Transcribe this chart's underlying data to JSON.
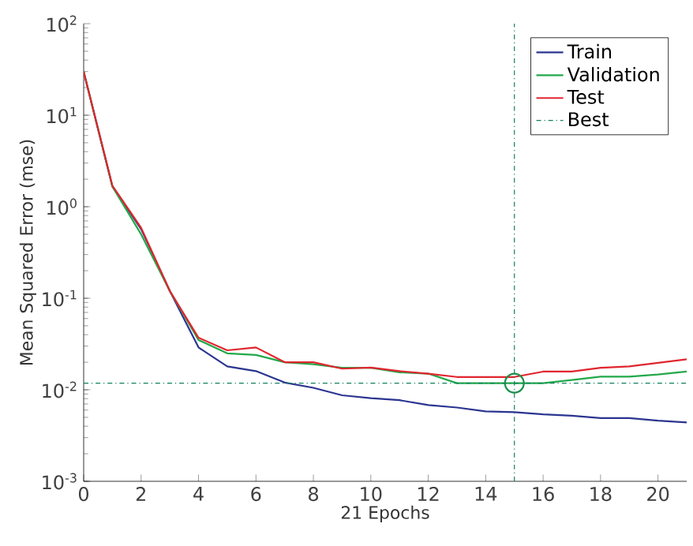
{
  "chart_data": {
    "type": "line",
    "xlabel": "21 Epochs",
    "ylabel": "Mean Squared Error (mse)",
    "x": [
      0,
      1,
      2,
      3,
      4,
      5,
      6,
      7,
      8,
      9,
      10,
      11,
      12,
      13,
      14,
      15,
      16,
      17,
      18,
      19,
      20,
      21
    ],
    "series": [
      {
        "name": "Train",
        "color": "#2b3590",
        "values": [
          30,
          1.66,
          0.57,
          0.12,
          0.029,
          0.018,
          0.016,
          0.012,
          0.0105,
          0.0087,
          0.0081,
          0.0077,
          0.0068,
          0.0064,
          0.0058,
          0.0057,
          0.0054,
          0.0052,
          0.0049,
          0.0049,
          0.0046,
          0.0044
        ]
      },
      {
        "name": "Validation",
        "color": "#22a84a",
        "values": [
          30,
          1.66,
          0.5,
          0.12,
          0.035,
          0.025,
          0.024,
          0.02,
          0.019,
          0.0174,
          0.0174,
          0.0155,
          0.015,
          0.0118,
          0.0118,
          0.0118,
          0.0118,
          0.0128,
          0.0139,
          0.0139,
          0.0147,
          0.0158
        ]
      },
      {
        "name": "Test",
        "color": "#e0262e",
        "values": [
          30,
          1.7,
          0.59,
          0.12,
          0.037,
          0.027,
          0.029,
          0.02,
          0.02,
          0.017,
          0.0175,
          0.016,
          0.015,
          0.0138,
          0.0138,
          0.0138,
          0.0158,
          0.0158,
          0.0174,
          0.018,
          0.0197,
          0.0215
        ]
      },
      {
        "type": "scatter",
        "color": "#1a8f4a",
        "marker": "circle",
        "x": [
          15
        ],
        "values": [
          0.0118
        ]
      }
    ],
    "ref_lines": [
      {
        "axis": "x",
        "value": 15,
        "label": "Best",
        "color": "#0f8060",
        "line_style": "dashdot"
      },
      {
        "axis": "y",
        "value": 0.0118,
        "color": "#0f8060",
        "line_style": "dashdot"
      }
    ],
    "xlim": [
      0,
      21
    ],
    "ylim": [
      0.001,
      100
    ],
    "log": "y",
    "xticks": [
      0,
      2,
      4,
      6,
      8,
      10,
      12,
      14,
      16,
      18,
      20
    ],
    "yticks": [
      {
        "value": 0.001,
        "label": "10$^{-3}$"
      },
      {
        "value": 0.01,
        "label": "10$^{-2}$"
      },
      {
        "value": 0.1,
        "label": "10$^{-1}$"
      },
      {
        "value": 1,
        "label": "10$^{0}$"
      },
      {
        "value": 10,
        "label": "10$^{1}$"
      },
      {
        "value": 100,
        "label": "10$^{2}$"
      }
    ],
    "legend": "top right",
    "grid": false
  }
}
